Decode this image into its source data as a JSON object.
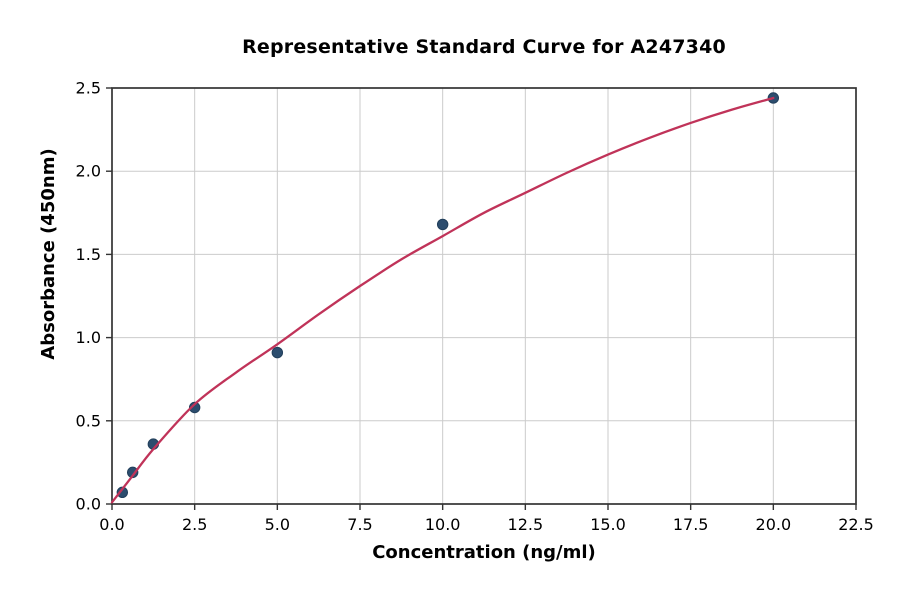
{
  "chart_data": {
    "type": "scatter",
    "title": "Representative Standard Curve for A247340",
    "xlabel": "Concentration (ng/ml)",
    "ylabel": "Absorbance (450nm)",
    "xlim": [
      0,
      22.5
    ],
    "ylim": [
      0,
      2.5
    ],
    "xticks": [
      0,
      2.5,
      5,
      7.5,
      10,
      12.5,
      15,
      17.5,
      20,
      22.5
    ],
    "yticks": [
      0,
      0.5,
      1,
      1.5,
      2,
      2.5
    ],
    "tick_decimals": 1,
    "grid": true,
    "legend_position": "none",
    "series": [
      {
        "name": "standard-data-points",
        "type": "scatter",
        "color": "#2c4d6e",
        "edge_color": "#223f5b",
        "marker": "circle",
        "points": [
          [
            0.3125,
            0.07
          ],
          [
            0.625,
            0.19
          ],
          [
            1.25,
            0.36
          ],
          [
            2.5,
            0.58
          ],
          [
            5,
            0.91
          ],
          [
            10,
            1.68
          ],
          [
            20,
            2.44
          ]
        ]
      },
      {
        "name": "fitted-standard-curve",
        "type": "line",
        "color": "#c03359",
        "points": [
          [
            0,
            0.01
          ],
          [
            0.3125,
            0.09
          ],
          [
            0.625,
            0.17
          ],
          [
            1.25,
            0.33
          ],
          [
            2.5,
            0.6
          ],
          [
            3.75,
            0.79
          ],
          [
            5,
            0.96
          ],
          [
            6.25,
            1.14
          ],
          [
            7.5,
            1.31
          ],
          [
            8.75,
            1.47
          ],
          [
            10,
            1.61
          ],
          [
            11.25,
            1.75
          ],
          [
            12.5,
            1.87
          ],
          [
            13.75,
            1.99
          ],
          [
            15,
            2.1
          ],
          [
            16.25,
            2.2
          ],
          [
            17.5,
            2.29
          ],
          [
            18.75,
            2.37
          ],
          [
            20,
            2.44
          ]
        ]
      }
    ],
    "colors": {
      "grid": "#cbcbcb",
      "spine": "#333333",
      "text": "#000000",
      "background": "#ffffff"
    }
  }
}
